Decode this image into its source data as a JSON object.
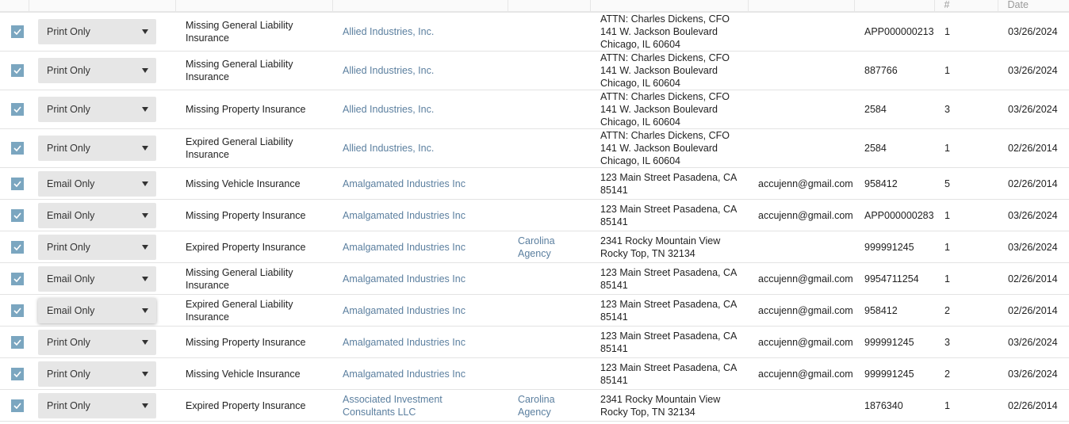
{
  "header": {
    "count": "#",
    "date": "Date"
  },
  "colors": {
    "checkbox": "#7ba6c0",
    "link": "#5b7f9f",
    "select_bg": "#e6e6e6"
  },
  "rows": [
    {
      "checked": true,
      "delivery": "Print Only",
      "type": "Missing General Liability Insurance",
      "insured": "Allied Industries, Inc.",
      "agency": "",
      "address": "ATTN: Charles Dickens, CFO 141 W. Jackson Boulevard Chicago, IL 60604",
      "email": "",
      "cert": "APP000000213",
      "count": "1",
      "date": "03/26/2024"
    },
    {
      "checked": true,
      "delivery": "Print Only",
      "type": "Missing General Liability Insurance",
      "insured": "Allied Industries, Inc.",
      "agency": "",
      "address": "ATTN: Charles Dickens, CFO 141 W. Jackson Boulevard Chicago, IL 60604",
      "email": "",
      "cert": "887766",
      "count": "1",
      "date": "03/26/2024"
    },
    {
      "checked": true,
      "delivery": "Print Only",
      "type": "Missing Property Insurance",
      "insured": "Allied Industries, Inc.",
      "agency": "",
      "address": "ATTN: Charles Dickens, CFO 141 W. Jackson Boulevard Chicago, IL 60604",
      "email": "",
      "cert": "2584",
      "count": "3",
      "date": "03/26/2024"
    },
    {
      "checked": true,
      "delivery": "Print Only",
      "type": "Expired General Liability Insurance",
      "insured": "Allied Industries, Inc.",
      "agency": "",
      "address": "ATTN: Charles Dickens, CFO 141 W. Jackson Boulevard Chicago, IL 60604",
      "email": "",
      "cert": "2584",
      "count": "1",
      "date": "02/26/2014"
    },
    {
      "checked": true,
      "delivery": "Email Only",
      "type": "Missing Vehicle Insurance",
      "insured": "Amalgamated Industries Inc",
      "agency": "",
      "address": "123 Main Street Pasadena, CA 85141",
      "email": "accujenn@gmail.com",
      "cert": "958412",
      "count": "5",
      "date": "02/26/2014"
    },
    {
      "checked": true,
      "delivery": "Email Only",
      "type": "Missing Property Insurance",
      "insured": "Amalgamated Industries Inc",
      "agency": "",
      "address": "123 Main Street Pasadena, CA 85141",
      "email": "accujenn@gmail.com",
      "cert": "APP000000283",
      "count": "1",
      "date": "03/26/2024"
    },
    {
      "checked": true,
      "delivery": "Print Only",
      "type": "Expired Property Insurance",
      "insured": "Amalgamated Industries Inc",
      "agency": "Carolina Agency",
      "address": "2341 Rocky Mountain View Rocky Top, TN 32134",
      "email": "",
      "cert": "999991245",
      "count": "1",
      "date": "03/26/2024"
    },
    {
      "checked": true,
      "delivery": "Email Only",
      "type": "Missing General Liability Insurance",
      "insured": "Amalgamated Industries Inc",
      "agency": "",
      "address": "123 Main Street Pasadena, CA 85141",
      "email": "accujenn@gmail.com",
      "cert": "9954711254",
      "count": "1",
      "date": "02/26/2014"
    },
    {
      "checked": true,
      "delivery": "Email Only",
      "focused": true,
      "type": "Expired General Liability Insurance",
      "insured": "Amalgamated Industries Inc",
      "agency": "",
      "address": "123 Main Street Pasadena, CA 85141",
      "email": "accujenn@gmail.com",
      "cert": "958412",
      "count": "2",
      "date": "02/26/2014"
    },
    {
      "checked": true,
      "delivery": "Print Only",
      "type": "Missing Property Insurance",
      "insured": "Amalgamated Industries Inc",
      "agency": "",
      "address": "123 Main Street Pasadena, CA 85141",
      "email": "accujenn@gmail.com",
      "cert": "999991245",
      "count": "3",
      "date": "03/26/2024"
    },
    {
      "checked": true,
      "delivery": "Print Only",
      "type": "Missing Vehicle Insurance",
      "insured": "Amalgamated Industries Inc",
      "agency": "",
      "address": "123 Main Street Pasadena, CA 85141",
      "email": "accujenn@gmail.com",
      "cert": "999991245",
      "count": "2",
      "date": "03/26/2024"
    },
    {
      "checked": true,
      "delivery": "Print Only",
      "type": "Expired Property Insurance",
      "insured": "Associated Investment Consultants LLC",
      "agency": "Carolina Agency",
      "address": "2341 Rocky Mountain View Rocky Top, TN 32134",
      "email": "",
      "cert": "1876340",
      "count": "1",
      "date": "02/26/2014"
    }
  ]
}
